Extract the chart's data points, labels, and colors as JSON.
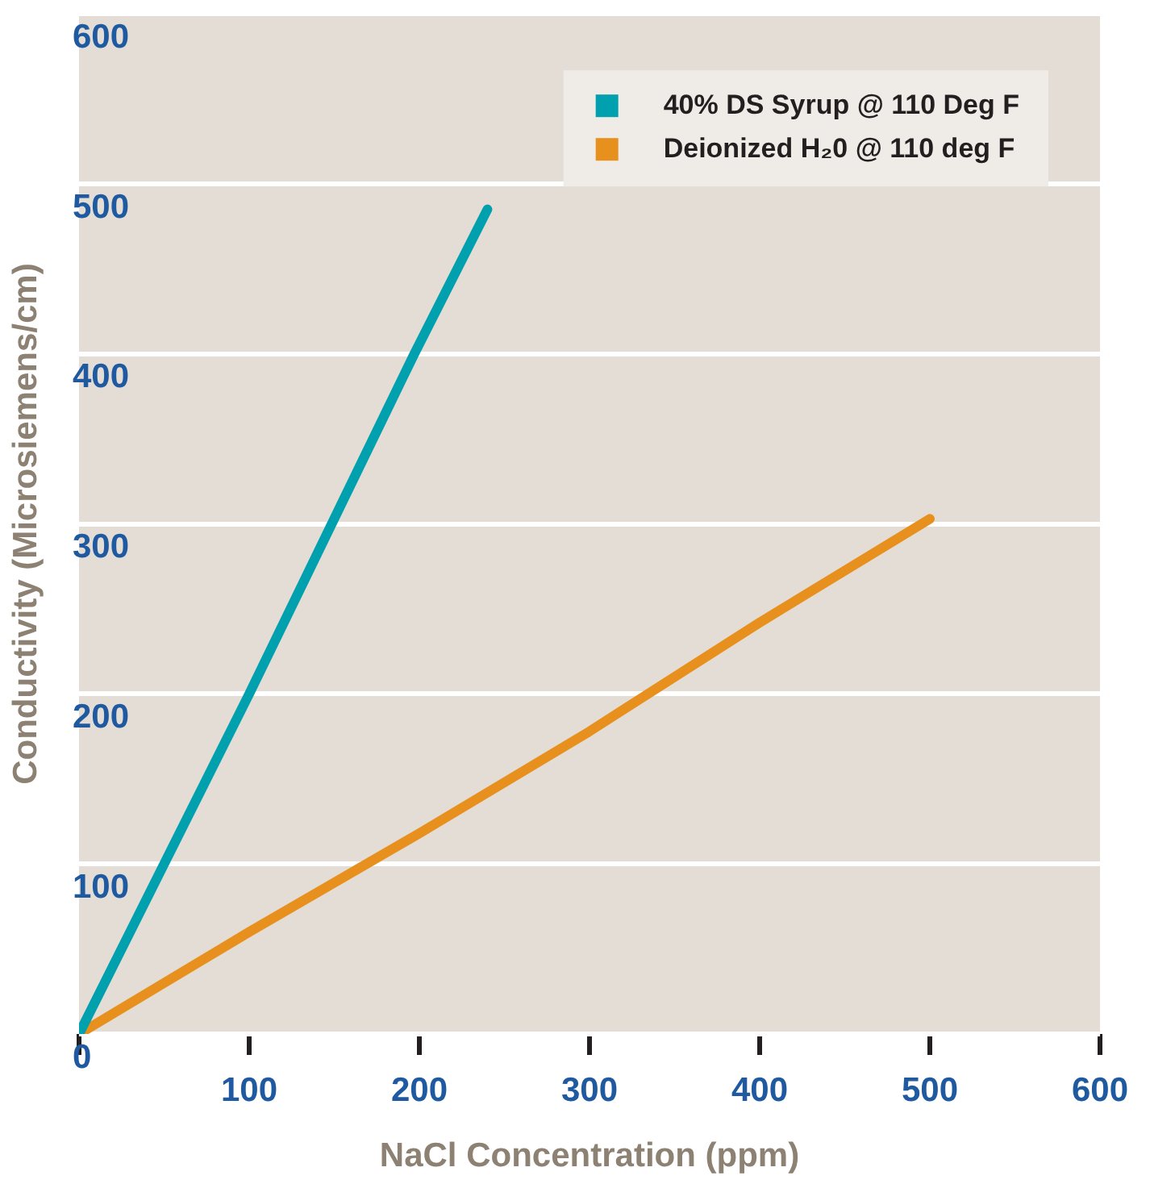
{
  "chart_data": {
    "type": "line",
    "xlabel": "NaCl Concentration (ppm)",
    "ylabel": "Conductivity (Microsiemens/cm)",
    "xlim": [
      0,
      600
    ],
    "xticks": [
      {
        "value": 0,
        "label": null
      },
      100,
      200,
      300,
      400,
      500,
      600
    ],
    "ylim": [
      0,
      600
    ],
    "yticks": [
      0,
      100,
      200,
      300,
      400,
      500,
      600
    ],
    "grid": "y",
    "legend": "top right",
    "marker": "none",
    "line_style": "solid",
    "series": [
      {
        "name": "40% DS Syrup @ 110 Deg F",
        "color": "#00a0ae",
        "x": [
          0,
          100,
          197,
          240
        ],
        "values": [
          0,
          200,
          400,
          485
        ]
      },
      {
        "name": "Deionized H₂0 @ 110 deg F",
        "color": "#e8901e",
        "x": [
          0,
          100,
          200,
          300,
          400,
          500
        ],
        "values": [
          0,
          60,
          118,
          178,
          242,
          303
        ]
      }
    ]
  }
}
